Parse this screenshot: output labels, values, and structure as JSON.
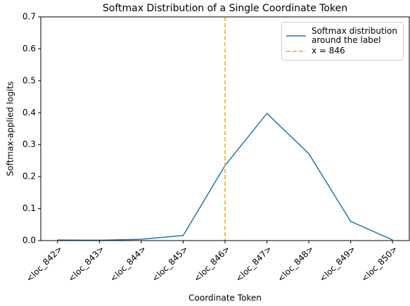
{
  "chart_data": {
    "type": "line",
    "title": "Softmax Distribution of a Single Coordinate Token",
    "xlabel": "Coordinate Token",
    "ylabel": "Softmax-applied logits",
    "categories": [
      "<loc_842>",
      "<loc_843>",
      "<loc_844>",
      "<loc_845>",
      "<loc_846>",
      "<loc_847>",
      "<loc_848>",
      "<loc_849>",
      "<loc_850>"
    ],
    "series": [
      {
        "name": "Softmax distribution\naround the label",
        "color": "#1f77b4",
        "values": [
          0.002,
          0.001,
          0.004,
          0.016,
          0.235,
          0.398,
          0.272,
          0.06,
          0.002
        ]
      }
    ],
    "vline": {
      "name": "x = 846",
      "color": "#ffa500",
      "category_index": 4
    },
    "xlim": [
      -0.4,
      8.4
    ],
    "ylim": [
      0,
      0.7
    ],
    "yticks": [
      {
        "value": 0,
        "label": "0.0"
      },
      0.1,
      0.2,
      0.3,
      0.4,
      0.5,
      0.6,
      0.7
    ],
    "legend": "upper right"
  }
}
